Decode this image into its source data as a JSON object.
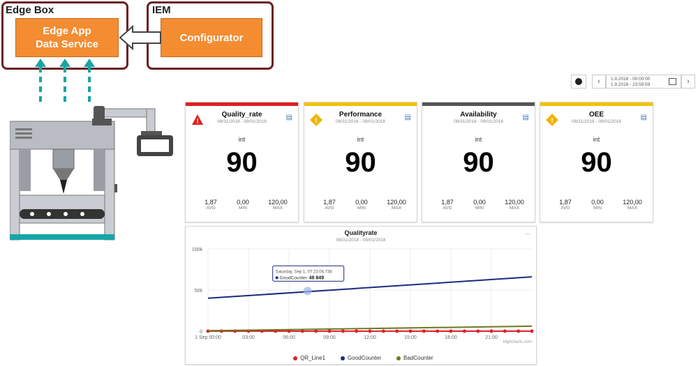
{
  "edge_box": {
    "title": "Edge Box",
    "app_label_1": "Edge App",
    "app_label_2": "Data Service"
  },
  "iem": {
    "title": "IEM",
    "configurator_label": "Configurator"
  },
  "date_range": {
    "from": "1.9.2018 - 00:00:00",
    "to": "1.9.2018 - 23:59:59"
  },
  "cards": [
    {
      "title": "Quality_rate",
      "date": "08/31/2018 - 09/01/2018",
      "type": "int",
      "value": "90",
      "avg": "1,87",
      "min": "0,00",
      "max": "120,00",
      "avg_label": "AVG",
      "min_label": "MIN",
      "max_label": "MAX",
      "status": "red-warning",
      "bar_color": "#e02020"
    },
    {
      "title": "Performance",
      "date": "08/31/2018 - 09/01/2018",
      "type": "int",
      "value": "90",
      "avg": "1,87",
      "min": "0,00",
      "max": "120,00",
      "avg_label": "AVG",
      "min_label": "MIN",
      "max_label": "MAX",
      "status": "yellow-warning",
      "bar_color": "#f2c200"
    },
    {
      "title": "Availability",
      "date": "08/31/2018 - 09/01/2018",
      "type": "int",
      "value": "90",
      "avg": "1,87",
      "min": "0,00",
      "max": "120,00",
      "avg_label": "AVG",
      "min_label": "MIN",
      "max_label": "MAX",
      "status": "none",
      "bar_color": "#555555"
    },
    {
      "title": "OEE",
      "date": "08/31/2018 - 09/01/2018",
      "type": "int",
      "value": "90",
      "avg": "1,87",
      "min": "0,00",
      "max": "120,00",
      "avg_label": "AVG",
      "min_label": "MIN",
      "max_label": "MAX",
      "status": "yellow-warning",
      "bar_color": "#f2c200"
    }
  ],
  "chart_data": {
    "type": "line",
    "title": "Qualityrate",
    "subtitle": "08/31/2018 - 09/01/2018",
    "x_labels": [
      "1 Sep 00:00",
      "03:00",
      "06:00",
      "09:00",
      "12:00",
      "15:00",
      "18:00",
      "21:00"
    ],
    "x_range": [
      0,
      24
    ],
    "y_labels": [
      "0",
      "50k",
      "100k"
    ],
    "y_range": [
      0,
      100000
    ],
    "series": [
      {
        "name": "QR_Line1",
        "color": "#e0202a",
        "x": [
          0,
          1,
          2,
          3,
          4,
          5,
          6,
          7,
          8,
          9,
          10,
          11,
          12,
          13,
          14,
          15,
          16,
          17,
          18,
          19,
          20,
          21,
          22,
          23,
          24
        ],
        "y": [
          0,
          0,
          0,
          0,
          0,
          0,
          0,
          0,
          0,
          0,
          0,
          0,
          0,
          0,
          0,
          0,
          0,
          0,
          0,
          0,
          0,
          0,
          0,
          0,
          0
        ]
      },
      {
        "name": "GoodCounter",
        "color": "#1c2a80",
        "x": [
          0,
          24
        ],
        "y": [
          40000,
          66000
        ]
      },
      {
        "name": "BadCounter",
        "color": "#6b7a1e",
        "x": [
          0,
          24
        ],
        "y": [
          500,
          6000
        ]
      }
    ],
    "tooltip": {
      "header": "Saturday, Sep 1, 07:23:06.738",
      "label": "GoodCounter:",
      "value": "48 849",
      "x": 7.38,
      "y": 48849
    },
    "credit": "Highcharts.com",
    "menu_icon": "more-icon"
  },
  "icons": {
    "red_warning": "warning-triangle-icon",
    "yellow_warning": "warning-diamond-icon",
    "side": "chart-link-icon",
    "calendar": "calendar-icon",
    "prev": "chevron-left-icon",
    "next": "chevron-right-icon",
    "clock": "clock-icon"
  }
}
